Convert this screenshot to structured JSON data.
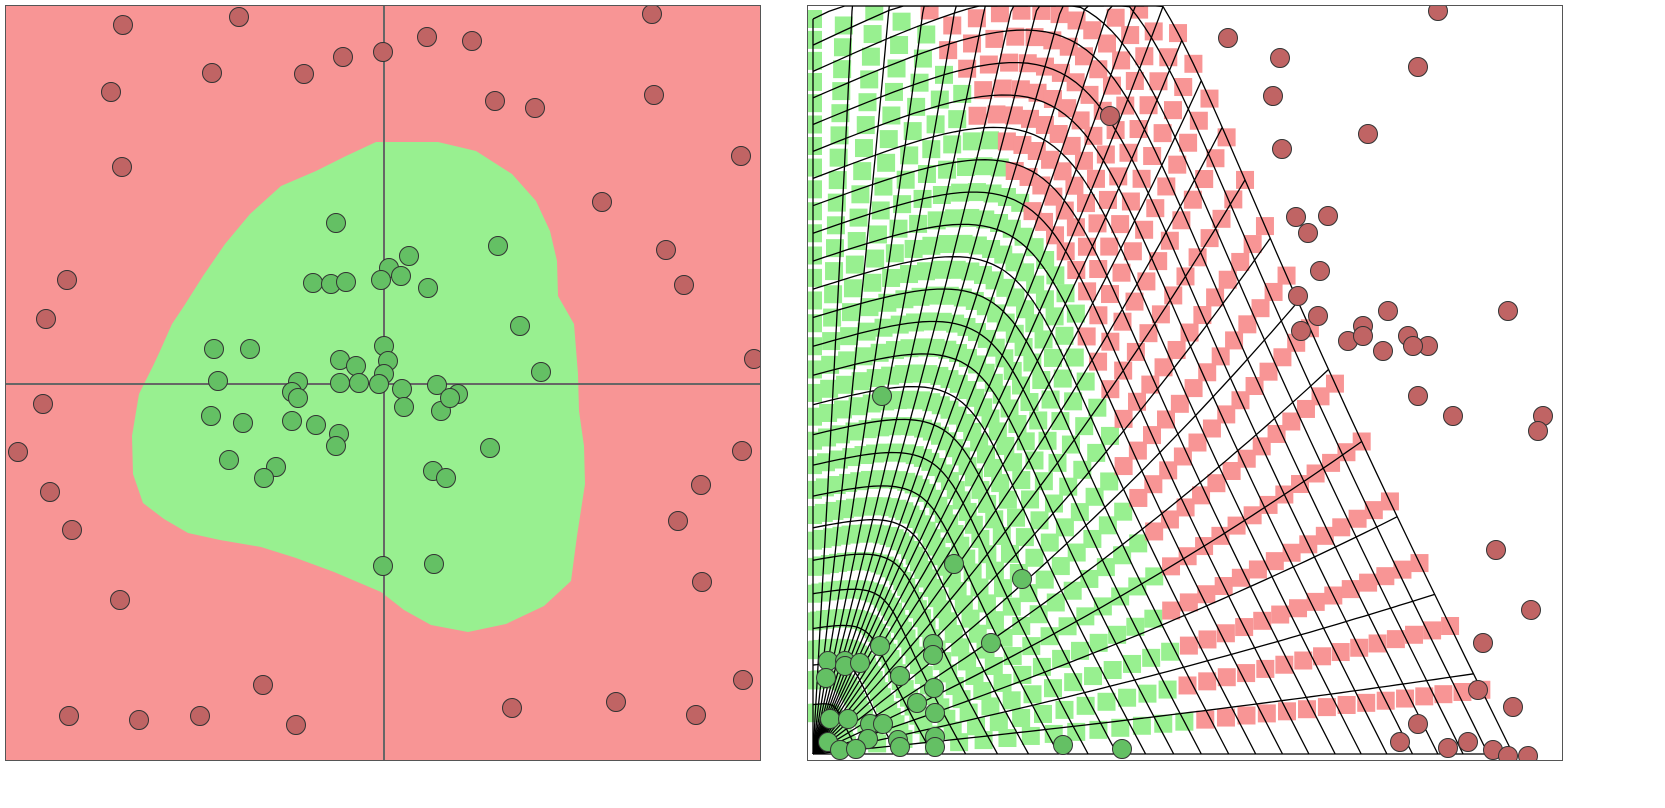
{
  "colors": {
    "negative_region": "#f89595",
    "positive_region": "#98f090",
    "negative_point": "#c06464",
    "positive_point": "#64c064",
    "axis": "#666666",
    "mesh": "#000000",
    "right_background": "#ffffff"
  },
  "left_panel": {
    "negative_points": [
      [
        117,
        19
      ],
      [
        233,
        11
      ],
      [
        646,
        8
      ],
      [
        206,
        67
      ],
      [
        298,
        68
      ],
      [
        337,
        51
      ],
      [
        377,
        46
      ],
      [
        421,
        31
      ],
      [
        466,
        35
      ],
      [
        105,
        86
      ],
      [
        489,
        95
      ],
      [
        529,
        102
      ],
      [
        648,
        89
      ],
      [
        116,
        161
      ],
      [
        735,
        150
      ],
      [
        596,
        196
      ],
      [
        61,
        274
      ],
      [
        40,
        313
      ],
      [
        660,
        244
      ],
      [
        678,
        279
      ],
      [
        748,
        353
      ],
      [
        37,
        398
      ],
      [
        12,
        446
      ],
      [
        44,
        486
      ],
      [
        66,
        524
      ],
      [
        114,
        594
      ],
      [
        736,
        445
      ],
      [
        695,
        479
      ],
      [
        672,
        515
      ],
      [
        696,
        576
      ],
      [
        257,
        679
      ],
      [
        63,
        710
      ],
      [
        133,
        714
      ],
      [
        194,
        710
      ],
      [
        290,
        719
      ],
      [
        506,
        702
      ],
      [
        610,
        696
      ],
      [
        690,
        709
      ],
      [
        737,
        674
      ]
    ],
    "positive_points": [
      [
        330,
        217
      ],
      [
        492,
        240
      ],
      [
        403,
        250
      ],
      [
        383,
        262
      ],
      [
        395,
        270
      ],
      [
        375,
        274
      ],
      [
        307,
        277
      ],
      [
        325,
        278
      ],
      [
        340,
        276
      ],
      [
        422,
        282
      ],
      [
        514,
        320
      ],
      [
        208,
        343
      ],
      [
        244,
        343
      ],
      [
        378,
        340
      ],
      [
        535,
        366
      ],
      [
        334,
        354
      ],
      [
        350,
        360
      ],
      [
        382,
        355
      ],
      [
        378,
        368
      ],
      [
        212,
        375
      ],
      [
        292,
        376
      ],
      [
        334,
        377
      ],
      [
        353,
        377
      ],
      [
        373,
        378
      ],
      [
        396,
        383
      ],
      [
        431,
        379
      ],
      [
        452,
        388
      ],
      [
        286,
        386
      ],
      [
        292,
        392
      ],
      [
        398,
        401
      ],
      [
        435,
        405
      ],
      [
        444,
        392
      ],
      [
        205,
        410
      ],
      [
        237,
        417
      ],
      [
        286,
        415
      ],
      [
        310,
        419
      ],
      [
        333,
        428
      ],
      [
        330,
        440
      ],
      [
        484,
        442
      ],
      [
        223,
        454
      ],
      [
        270,
        461
      ],
      [
        258,
        472
      ],
      [
        427,
        465
      ],
      [
        440,
        472
      ],
      [
        377,
        560
      ],
      [
        428,
        558
      ]
    ]
  },
  "right_panel": {
    "negative_points": [
      [
        420,
        32
      ],
      [
        472,
        52
      ],
      [
        610,
        61
      ],
      [
        630,
        5
      ],
      [
        465,
        90
      ],
      [
        560,
        128
      ],
      [
        302,
        110
      ],
      [
        474,
        143
      ],
      [
        488,
        211
      ],
      [
        520,
        210
      ],
      [
        500,
        227
      ],
      [
        512,
        265
      ],
      [
        490,
        290
      ],
      [
        510,
        310
      ],
      [
        555,
        320
      ],
      [
        580,
        305
      ],
      [
        600,
        330
      ],
      [
        620,
        340
      ],
      [
        700,
        305
      ],
      [
        575,
        345
      ],
      [
        540,
        335
      ],
      [
        493,
        325
      ],
      [
        605,
        340
      ],
      [
        555,
        330
      ],
      [
        610,
        390
      ],
      [
        645,
        410
      ],
      [
        735,
        410
      ],
      [
        730,
        425
      ],
      [
        688,
        544
      ],
      [
        723,
        604
      ],
      [
        675,
        637
      ],
      [
        670,
        684
      ],
      [
        705,
        701
      ],
      [
        610,
        718
      ],
      [
        592,
        736
      ],
      [
        640,
        742
      ],
      [
        660,
        736
      ],
      [
        685,
        744
      ],
      [
        700,
        750
      ],
      [
        720,
        750
      ]
    ],
    "positive_points": [
      [
        74,
        390
      ],
      [
        146,
        558
      ],
      [
        214,
        573
      ],
      [
        183,
        637
      ],
      [
        72,
        640
      ],
      [
        125,
        638
      ],
      [
        20,
        655
      ],
      [
        37,
        655
      ],
      [
        18,
        672
      ],
      [
        37,
        660
      ],
      [
        52,
        657
      ],
      [
        125,
        649
      ],
      [
        92,
        670
      ],
      [
        126,
        682
      ],
      [
        109,
        697
      ],
      [
        127,
        707
      ],
      [
        22,
        713
      ],
      [
        40,
        713
      ],
      [
        62,
        718
      ],
      [
        60,
        733
      ],
      [
        90,
        734
      ],
      [
        75,
        718
      ],
      [
        127,
        731
      ],
      [
        20,
        736
      ],
      [
        32,
        744
      ],
      [
        48,
        743
      ],
      [
        92,
        741
      ],
      [
        127,
        741
      ],
      [
        255,
        739
      ],
      [
        314,
        743
      ]
    ]
  }
}
